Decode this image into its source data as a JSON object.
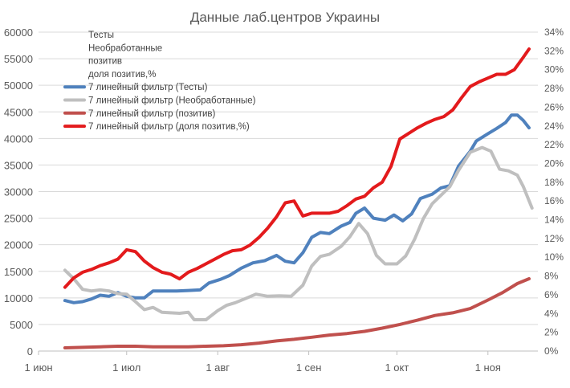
{
  "chart_data": {
    "type": "line",
    "title": "Данные лаб.центров Украины",
    "grid": true,
    "legend_position": "top-left",
    "legend": [
      {
        "label": "Тесты",
        "color": null
      },
      {
        "label": "Необработанные",
        "color": null
      },
      {
        "label": "позитив",
        "color": null
      },
      {
        "label": "доля позитив,%",
        "color": null
      },
      {
        "label": "7 линейный фильтр (Тесты)",
        "color": "#4f81bd"
      },
      {
        "label": "7 линейный фильтр (Необработанные)",
        "color": "#bfbfbf"
      },
      {
        "label": "7 линейный фильтр (позитив)",
        "color": "#c0504d"
      },
      {
        "label": "7 линейный фильтр (доля позитив,%)",
        "color": "#e31a1c"
      }
    ],
    "x_axis": {
      "type": "date",
      "min": "2020-06-01",
      "max": "2020-11-18",
      "ticks": [
        {
          "date": "2020-06-01",
          "label": "1 июн"
        },
        {
          "date": "2020-07-01",
          "label": "1 июл"
        },
        {
          "date": "2020-08-01",
          "label": "1 авг"
        },
        {
          "date": "2020-09-01",
          "label": "1 сен"
        },
        {
          "date": "2020-10-01",
          "label": "1 окт"
        },
        {
          "date": "2020-11-01",
          "label": "1 ноя"
        }
      ]
    },
    "y_axis_left": {
      "min": 0,
      "max": 60000,
      "ticks": [
        "0",
        "5000",
        "10000",
        "15000",
        "20000",
        "25000",
        "30000",
        "35000",
        "40000",
        "45000",
        "50000",
        "55000",
        "60000"
      ]
    },
    "y_axis_right": {
      "min": 0,
      "max": 34,
      "ticks": [
        "0%",
        "2%",
        "4%",
        "6%",
        "8%",
        "10%",
        "12%",
        "14%",
        "16%",
        "18%",
        "20%",
        "22%",
        "24%",
        "26%",
        "28%",
        "30%",
        "32%",
        "34%"
      ]
    },
    "series": [
      {
        "name": "7 линейный фильтр (Тесты)",
        "axis": "left",
        "color": "#4f81bd",
        "points": [
          [
            "2020-06-10",
            9500
          ],
          [
            "2020-06-13",
            9100
          ],
          [
            "2020-06-16",
            9300
          ],
          [
            "2020-06-19",
            9800
          ],
          [
            "2020-06-22",
            10500
          ],
          [
            "2020-06-25",
            10300
          ],
          [
            "2020-06-28",
            11000
          ],
          [
            "2020-07-01",
            10300
          ],
          [
            "2020-07-04",
            10000
          ],
          [
            "2020-07-07",
            10000
          ],
          [
            "2020-07-10",
            11300
          ],
          [
            "2020-07-14",
            11300
          ],
          [
            "2020-07-18",
            11300
          ],
          [
            "2020-07-22",
            11400
          ],
          [
            "2020-07-26",
            11500
          ],
          [
            "2020-07-29",
            12800
          ],
          [
            "2020-08-02",
            13500
          ],
          [
            "2020-08-05",
            14200
          ],
          [
            "2020-08-09",
            15600
          ],
          [
            "2020-08-13",
            16600
          ],
          [
            "2020-08-17",
            17000
          ],
          [
            "2020-08-21",
            18000
          ],
          [
            "2020-08-24",
            16900
          ],
          [
            "2020-08-27",
            16600
          ],
          [
            "2020-08-30",
            18500
          ],
          [
            "2020-09-02",
            21400
          ],
          [
            "2020-09-05",
            22300
          ],
          [
            "2020-09-08",
            22100
          ],
          [
            "2020-09-12",
            23500
          ],
          [
            "2020-09-15",
            24200
          ],
          [
            "2020-09-17",
            25900
          ],
          [
            "2020-09-20",
            26900
          ],
          [
            "2020-09-23",
            25000
          ],
          [
            "2020-09-27",
            24600
          ],
          [
            "2020-09-30",
            25600
          ],
          [
            "2020-10-03",
            24500
          ],
          [
            "2020-10-06",
            25800
          ],
          [
            "2020-10-09",
            28700
          ],
          [
            "2020-10-13",
            29500
          ],
          [
            "2020-10-16",
            30700
          ],
          [
            "2020-10-19",
            31100
          ],
          [
            "2020-10-22",
            34800
          ],
          [
            "2020-10-26",
            37600
          ],
          [
            "2020-10-28",
            39500
          ],
          [
            "2020-11-01",
            40900
          ],
          [
            "2020-11-04",
            41900
          ],
          [
            "2020-11-07",
            43000
          ],
          [
            "2020-11-09",
            44400
          ],
          [
            "2020-11-11",
            44400
          ],
          [
            "2020-11-13",
            43400
          ],
          [
            "2020-11-15",
            42000
          ]
        ]
      },
      {
        "name": "7 линейный фильтр (Необработанные)",
        "axis": "left",
        "color": "#bfbfbf",
        "points": [
          [
            "2020-06-10",
            15200
          ],
          [
            "2020-06-13",
            13600
          ],
          [
            "2020-06-16",
            11600
          ],
          [
            "2020-06-19",
            11300
          ],
          [
            "2020-06-22",
            11500
          ],
          [
            "2020-06-25",
            11300
          ],
          [
            "2020-06-28",
            10800
          ],
          [
            "2020-07-01",
            10700
          ],
          [
            "2020-07-04",
            9300
          ],
          [
            "2020-07-07",
            7800
          ],
          [
            "2020-07-10",
            8200
          ],
          [
            "2020-07-13",
            7300
          ],
          [
            "2020-07-16",
            7200
          ],
          [
            "2020-07-19",
            7100
          ],
          [
            "2020-07-22",
            7300
          ],
          [
            "2020-07-24",
            5900
          ],
          [
            "2020-07-28",
            5900
          ],
          [
            "2020-08-01",
            7600
          ],
          [
            "2020-08-04",
            8600
          ],
          [
            "2020-08-07",
            9100
          ],
          [
            "2020-08-11",
            10000
          ],
          [
            "2020-08-14",
            10700
          ],
          [
            "2020-08-18",
            10300
          ],
          [
            "2020-08-22",
            10400
          ],
          [
            "2020-08-26",
            10300
          ],
          [
            "2020-08-30",
            12400
          ],
          [
            "2020-09-02",
            16000
          ],
          [
            "2020-09-05",
            17800
          ],
          [
            "2020-09-08",
            18200
          ],
          [
            "2020-09-12",
            19700
          ],
          [
            "2020-09-15",
            21500
          ],
          [
            "2020-09-18",
            24000
          ],
          [
            "2020-09-21",
            22100
          ],
          [
            "2020-09-24",
            18000
          ],
          [
            "2020-09-27",
            16400
          ],
          [
            "2020-10-01",
            16400
          ],
          [
            "2020-10-04",
            17900
          ],
          [
            "2020-10-07",
            21000
          ],
          [
            "2020-10-10",
            24900
          ],
          [
            "2020-10-13",
            27700
          ],
          [
            "2020-10-16",
            29300
          ],
          [
            "2020-10-19",
            30900
          ],
          [
            "2020-10-22",
            34000
          ],
          [
            "2020-10-26",
            37400
          ],
          [
            "2020-10-30",
            38300
          ],
          [
            "2020-11-02",
            37600
          ],
          [
            "2020-11-05",
            34200
          ],
          [
            "2020-11-08",
            33900
          ],
          [
            "2020-11-11",
            33100
          ],
          [
            "2020-11-13",
            31000
          ],
          [
            "2020-11-16",
            26900
          ]
        ]
      },
      {
        "name": "7 линейный фильтр (позитив)",
        "axis": "left",
        "color": "#c0504d",
        "points": [
          [
            "2020-06-10",
            600
          ],
          [
            "2020-06-16",
            700
          ],
          [
            "2020-06-22",
            800
          ],
          [
            "2020-06-28",
            900
          ],
          [
            "2020-07-04",
            900
          ],
          [
            "2020-07-10",
            800
          ],
          [
            "2020-07-16",
            800
          ],
          [
            "2020-07-22",
            800
          ],
          [
            "2020-07-28",
            900
          ],
          [
            "2020-08-03",
            1000
          ],
          [
            "2020-08-09",
            1200
          ],
          [
            "2020-08-15",
            1500
          ],
          [
            "2020-08-21",
            1900
          ],
          [
            "2020-08-27",
            2200
          ],
          [
            "2020-09-02",
            2600
          ],
          [
            "2020-09-08",
            3000
          ],
          [
            "2020-09-14",
            3300
          ],
          [
            "2020-09-20",
            3700
          ],
          [
            "2020-09-26",
            4300
          ],
          [
            "2020-10-02",
            5000
          ],
          [
            "2020-10-08",
            5800
          ],
          [
            "2020-10-14",
            6700
          ],
          [
            "2020-10-20",
            7200
          ],
          [
            "2020-10-26",
            8000
          ],
          [
            "2020-11-01",
            9600
          ],
          [
            "2020-11-06",
            11000
          ],
          [
            "2020-11-11",
            12700
          ],
          [
            "2020-11-15",
            13600
          ]
        ]
      },
      {
        "name": "7 линейный фильтр (доля позитив,%)",
        "axis": "right",
        "color": "#e31a1c",
        "points": [
          [
            "2020-06-10",
            6.8
          ],
          [
            "2020-06-13",
            7.8
          ],
          [
            "2020-06-16",
            8.4
          ],
          [
            "2020-06-19",
            8.7
          ],
          [
            "2020-06-22",
            9.1
          ],
          [
            "2020-06-25",
            9.4
          ],
          [
            "2020-06-28",
            9.8
          ],
          [
            "2020-07-01",
            10.8
          ],
          [
            "2020-07-04",
            10.6
          ],
          [
            "2020-07-07",
            9.6
          ],
          [
            "2020-07-10",
            8.9
          ],
          [
            "2020-07-13",
            8.4
          ],
          [
            "2020-07-16",
            8.2
          ],
          [
            "2020-07-19",
            7.7
          ],
          [
            "2020-07-22",
            8.4
          ],
          [
            "2020-07-25",
            8.8
          ],
          [
            "2020-07-28",
            9.3
          ],
          [
            "2020-07-31",
            9.8
          ],
          [
            "2020-08-03",
            10.3
          ],
          [
            "2020-08-06",
            10.7
          ],
          [
            "2020-08-09",
            10.8
          ],
          [
            "2020-08-12",
            11.3
          ],
          [
            "2020-08-15",
            12.1
          ],
          [
            "2020-08-18",
            13.1
          ],
          [
            "2020-08-21",
            14.3
          ],
          [
            "2020-08-24",
            15.8
          ],
          [
            "2020-08-27",
            16.0
          ],
          [
            "2020-08-30",
            14.4
          ],
          [
            "2020-09-02",
            14.7
          ],
          [
            "2020-09-05",
            14.7
          ],
          [
            "2020-09-08",
            14.7
          ],
          [
            "2020-09-11",
            14.9
          ],
          [
            "2020-09-14",
            15.5
          ],
          [
            "2020-09-17",
            16.2
          ],
          [
            "2020-09-20",
            16.5
          ],
          [
            "2020-09-23",
            17.4
          ],
          [
            "2020-09-26",
            18.0
          ],
          [
            "2020-09-29",
            19.7
          ],
          [
            "2020-10-02",
            22.6
          ],
          [
            "2020-10-05",
            23.2
          ],
          [
            "2020-10-08",
            23.8
          ],
          [
            "2020-10-11",
            24.3
          ],
          [
            "2020-10-14",
            24.7
          ],
          [
            "2020-10-17",
            25.0
          ],
          [
            "2020-10-20",
            25.7
          ],
          [
            "2020-10-23",
            27.0
          ],
          [
            "2020-10-26",
            28.2
          ],
          [
            "2020-10-29",
            28.7
          ],
          [
            "2020-11-01",
            29.1
          ],
          [
            "2020-11-04",
            29.5
          ],
          [
            "2020-11-07",
            29.5
          ],
          [
            "2020-11-10",
            30.0
          ],
          [
            "2020-11-13",
            31.3
          ],
          [
            "2020-11-15",
            32.2
          ]
        ]
      }
    ]
  }
}
